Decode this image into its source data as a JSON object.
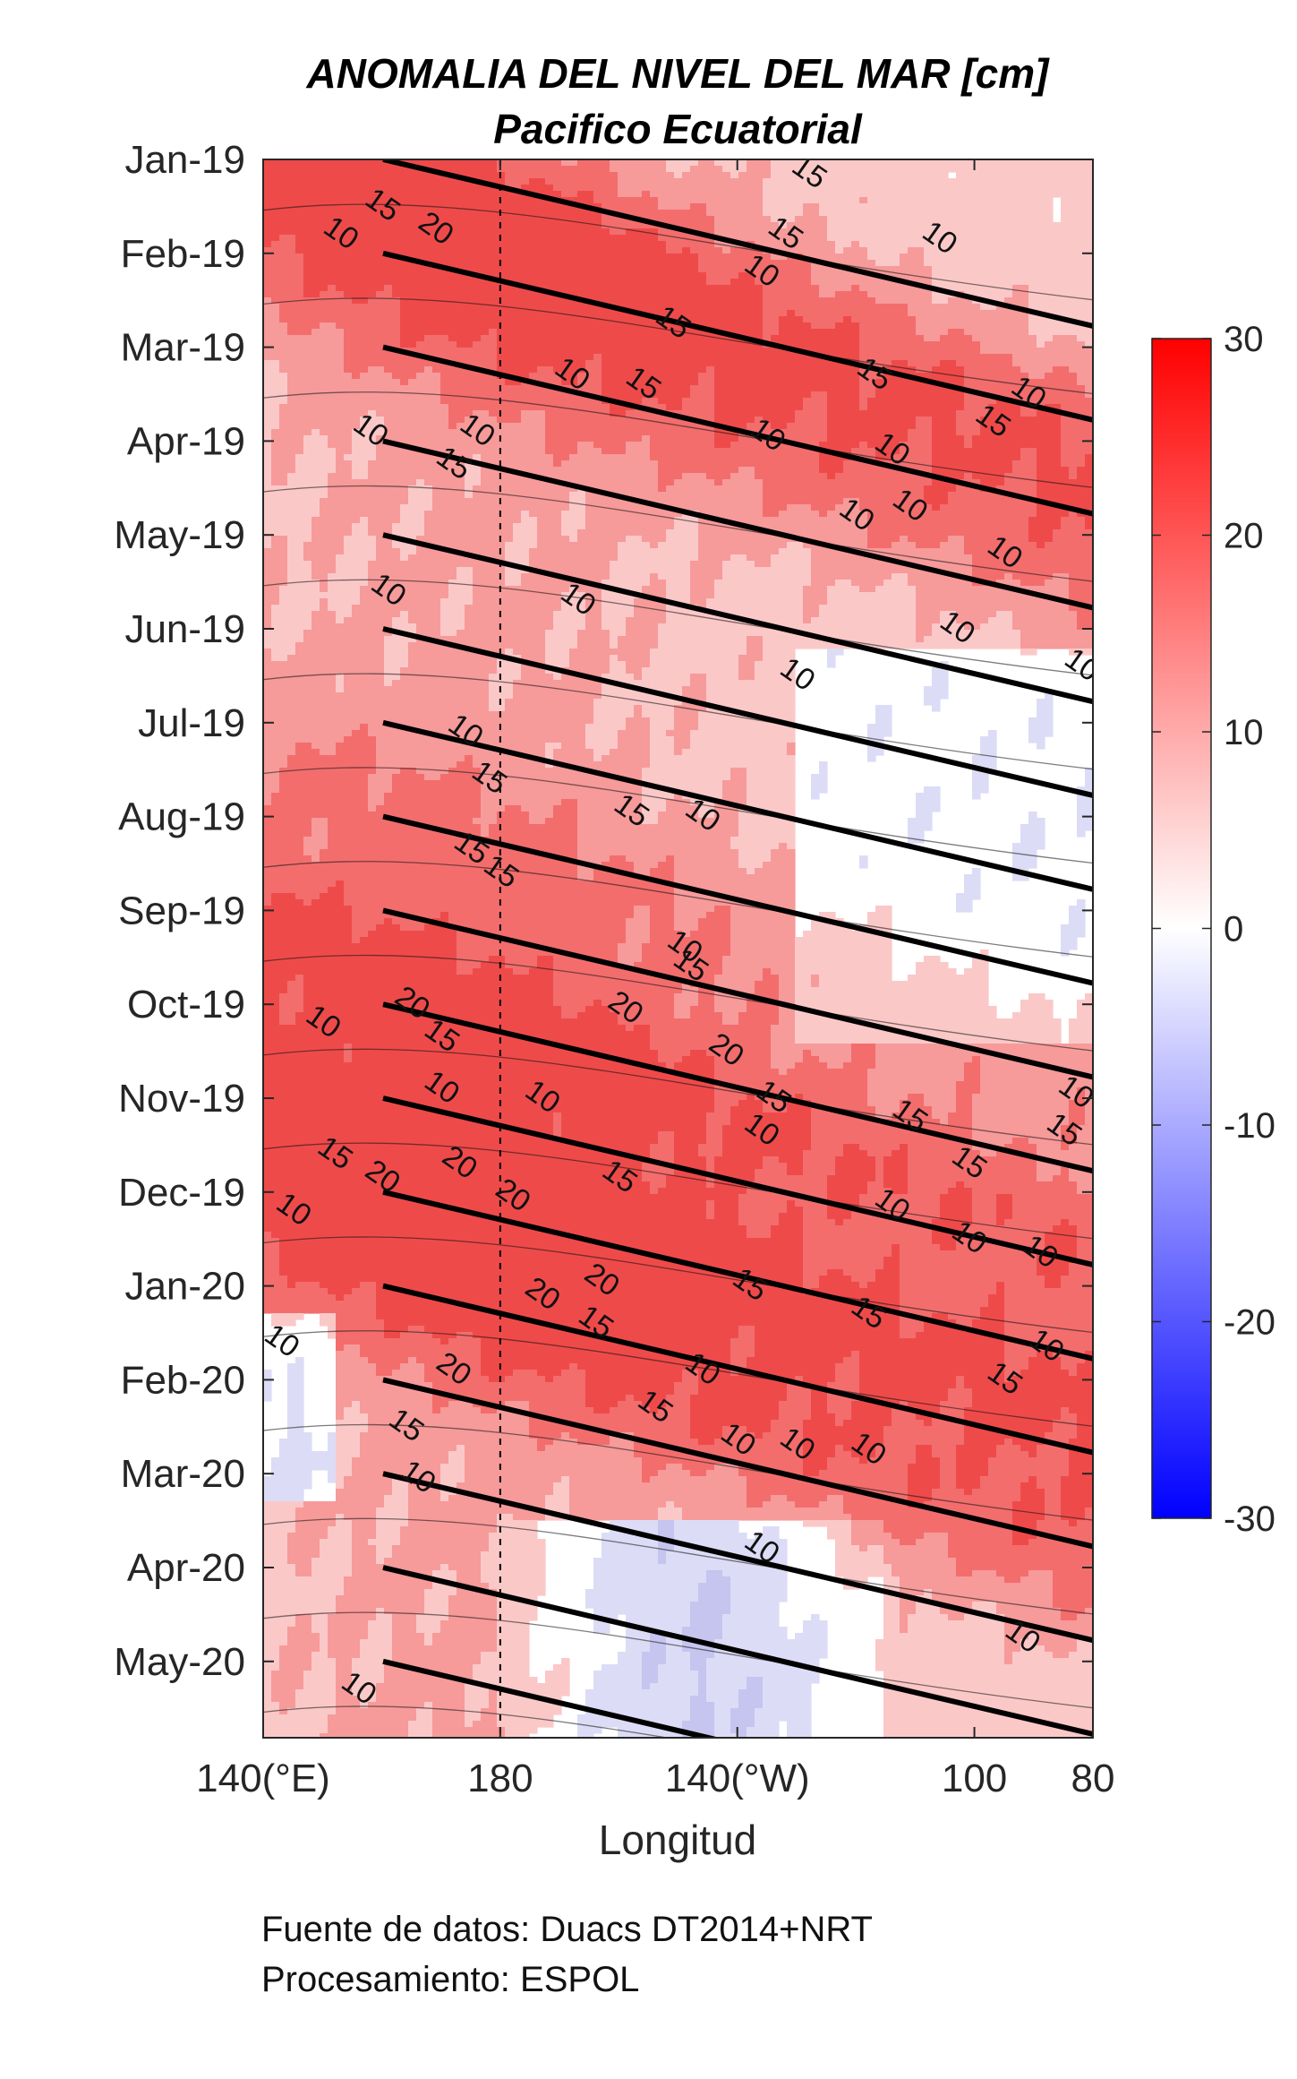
{
  "chart_data": {
    "type": "heatmap",
    "title": "ANOMALIA DEL NIVEL DEL MAR [cm]",
    "subtitle": "Pacifico Ecuatorial",
    "xlabel": "Longitud",
    "ylabel": "",
    "x_ticks": [
      "140(°E)",
      "180",
      "140(°W)",
      "100",
      "80"
    ],
    "x_tick_lon_east": [
      140,
      180,
      220,
      260,
      280
    ],
    "x_range_lon_east": [
      140,
      280
    ],
    "y_ticks": [
      "Jan-19",
      "Feb-19",
      "Mar-19",
      "Apr-19",
      "May-19",
      "Jun-19",
      "Jul-19",
      "Aug-19",
      "Sep-19",
      "Oct-19",
      "Nov-19",
      "Dec-19",
      "Jan-20",
      "Feb-20",
      "Mar-20",
      "Apr-20",
      "May-20"
    ],
    "y_direction": "time increases downward",
    "reference_line_lon_east": 180,
    "colorbar": {
      "min": -30,
      "max": 30,
      "ticks": [
        "30",
        "20",
        "10",
        "0",
        "-10",
        "-20",
        "-30"
      ],
      "colormap": {
        "negative": "#0000ff",
        "zero": "#ffffff",
        "positive": "#ff0000"
      }
    },
    "contour_levels": [
      0,
      10,
      15,
      20
    ],
    "contour_labels": [
      {
        "text": "15",
        "lon": 160,
        "month": 0.5
      },
      {
        "text": "10",
        "lon": 153,
        "month": 0.8
      },
      {
        "text": "20",
        "lon": 169,
        "month": 0.75
      },
      {
        "text": "15",
        "lon": 232,
        "month": 0.15
      },
      {
        "text": "15",
        "lon": 228,
        "month": 0.8
      },
      {
        "text": "10",
        "lon": 224,
        "month": 1.2
      },
      {
        "text": "10",
        "lon": 254,
        "month": 0.85
      },
      {
        "text": "15",
        "lon": 209,
        "month": 1.75
      },
      {
        "text": "15",
        "lon": 243,
        "month": 2.3
      },
      {
        "text": "10",
        "lon": 192,
        "month": 2.3
      },
      {
        "text": "15",
        "lon": 204,
        "month": 2.4
      },
      {
        "text": "10",
        "lon": 269,
        "month": 2.5
      },
      {
        "text": "15",
        "lon": 263,
        "month": 2.8
      },
      {
        "text": "10",
        "lon": 158,
        "month": 2.9
      },
      {
        "text": "10",
        "lon": 176,
        "month": 2.9
      },
      {
        "text": "15",
        "lon": 172,
        "month": 3.25
      },
      {
        "text": "10",
        "lon": 225,
        "month": 2.95
      },
      {
        "text": "10",
        "lon": 246,
        "month": 3.1
      },
      {
        "text": "10",
        "lon": 240,
        "month": 3.8
      },
      {
        "text": "10",
        "lon": 249,
        "month": 3.7
      },
      {
        "text": "10",
        "lon": 265,
        "month": 4.2
      },
      {
        "text": "10",
        "lon": 161,
        "month": 4.6
      },
      {
        "text": "10",
        "lon": 193,
        "month": 4.7
      },
      {
        "text": "10",
        "lon": 257,
        "month": 5.0
      },
      {
        "text": "10",
        "lon": 278,
        "month": 5.4
      },
      {
        "text": "10",
        "lon": 230,
        "month": 5.5
      },
      {
        "text": "10",
        "lon": 174,
        "month": 6.1
      },
      {
        "text": "15",
        "lon": 178,
        "month": 6.6
      },
      {
        "text": "15",
        "lon": 202,
        "month": 6.95
      },
      {
        "text": "10",
        "lon": 214,
        "month": 7.0
      },
      {
        "text": "15",
        "lon": 175,
        "month": 7.35
      },
      {
        "text": "15",
        "lon": 180,
        "month": 7.6
      },
      {
        "text": "10",
        "lon": 211,
        "month": 8.4
      },
      {
        "text": "15",
        "lon": 212,
        "month": 8.6
      },
      {
        "text": "20",
        "lon": 165,
        "month": 9.0
      },
      {
        "text": "20",
        "lon": 201,
        "month": 9.05
      },
      {
        "text": "15",
        "lon": 170,
        "month": 9.35
      },
      {
        "text": "20",
        "lon": 218,
        "month": 9.5
      },
      {
        "text": "10",
        "lon": 150,
        "month": 9.2
      },
      {
        "text": "10",
        "lon": 170,
        "month": 9.9
      },
      {
        "text": "10",
        "lon": 187,
        "month": 10.0
      },
      {
        "text": "15",
        "lon": 226,
        "month": 10.0
      },
      {
        "text": "10",
        "lon": 224,
        "month": 10.35
      },
      {
        "text": "15",
        "lon": 249,
        "month": 10.2
      },
      {
        "text": "10",
        "lon": 277,
        "month": 9.95
      },
      {
        "text": "15",
        "lon": 275,
        "month": 10.35
      },
      {
        "text": "15",
        "lon": 152,
        "month": 10.6
      },
      {
        "text": "20",
        "lon": 160,
        "month": 10.85
      },
      {
        "text": "20",
        "lon": 173,
        "month": 10.7
      },
      {
        "text": "20",
        "lon": 182,
        "month": 11.05
      },
      {
        "text": "15",
        "lon": 200,
        "month": 10.85
      },
      {
        "text": "10",
        "lon": 145,
        "month": 11.2
      },
      {
        "text": "15",
        "lon": 259,
        "month": 10.7
      },
      {
        "text": "10",
        "lon": 246,
        "month": 11.15
      },
      {
        "text": "10",
        "lon": 259,
        "month": 11.5
      },
      {
        "text": "10",
        "lon": 271,
        "month": 11.65
      },
      {
        "text": "20",
        "lon": 197,
        "month": 11.95
      },
      {
        "text": "20",
        "lon": 187,
        "month": 12.1
      },
      {
        "text": "15",
        "lon": 196,
        "month": 12.4
      },
      {
        "text": "15",
        "lon": 222,
        "month": 12.0
      },
      {
        "text": "15",
        "lon": 242,
        "month": 12.3
      },
      {
        "text": "10",
        "lon": 272,
        "month": 12.65
      },
      {
        "text": "15",
        "lon": 265,
        "month": 13.0
      },
      {
        "text": "10",
        "lon": 143,
        "month": 12.6
      },
      {
        "text": "20",
        "lon": 172,
        "month": 12.9
      },
      {
        "text": "10",
        "lon": 214,
        "month": 12.9
      },
      {
        "text": "15",
        "lon": 206,
        "month": 13.3
      },
      {
        "text": "15",
        "lon": 164,
        "month": 13.5
      },
      {
        "text": "10",
        "lon": 220,
        "month": 13.65
      },
      {
        "text": "10",
        "lon": 230,
        "month": 13.7
      },
      {
        "text": "10",
        "lon": 242,
        "month": 13.75
      },
      {
        "text": "10",
        "lon": 166,
        "month": 14.05
      },
      {
        "text": "10",
        "lon": 224,
        "month": 14.8
      },
      {
        "text": "10",
        "lon": 268,
        "month": 15.75
      },
      {
        "text": "10",
        "lon": 156,
        "month": 16.3
      }
    ]
  },
  "footer": {
    "source": "Fuente de datos: Duacs DT2014+NRT",
    "processing": "Procesamiento: ESPOL"
  }
}
